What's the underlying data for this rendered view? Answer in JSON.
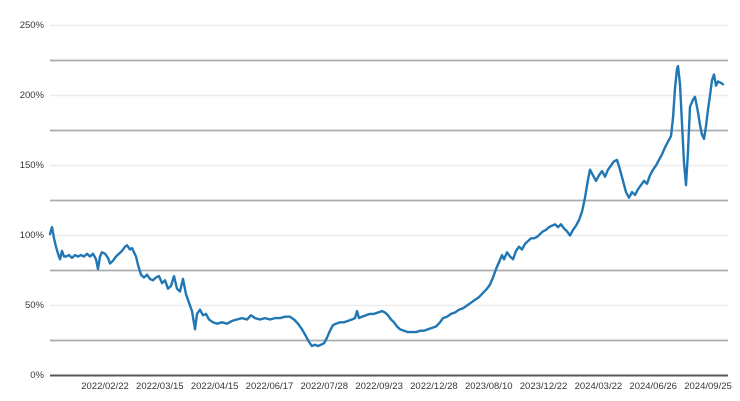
{
  "colors": {
    "background": "#ffffff",
    "line": "#2077b4",
    "major_gridline": "#ececec",
    "minor_gridline": "#a9adb2",
    "axis_line": "#54585d",
    "tick_label": "#35373a"
  },
  "chart_data": {
    "type": "line",
    "title": "",
    "legend": "none",
    "grid": "horizontal-only",
    "unit": "%",
    "ylim": [
      0,
      250
    ],
    "y_tick_labels": [
      "250%",
      "200%",
      "150%",
      "100%",
      "50%",
      "0%"
    ],
    "y_ticks_pct": [
      250,
      200,
      150,
      100,
      50,
      0
    ],
    "y_minor_gridlines_pct": [
      225,
      175,
      125,
      75,
      25
    ],
    "x_tick_labels": [
      "2022/02/22",
      "2022/03/15",
      "2022/04/15",
      "2022/06/17",
      "2022/07/28",
      "2022/09/23",
      "2022/12/28",
      "2023/08/10",
      "2023/12/22",
      "2024/03/22",
      "2024/06/26",
      "2024/09/25"
    ],
    "point_format": "[x_position_0to678_along_axis, percent_value]",
    "series": [
      {
        "points": [
          [
            0,
            101
          ],
          [
            2,
            106
          ],
          [
            4,
            98
          ],
          [
            6,
            92
          ],
          [
            8,
            87
          ],
          [
            10,
            83
          ],
          [
            12,
            89
          ],
          [
            14,
            85
          ],
          [
            16,
            85
          ],
          [
            19,
            86
          ],
          [
            22,
            84
          ],
          [
            25,
            86
          ],
          [
            28,
            85
          ],
          [
            31,
            86
          ],
          [
            34,
            85
          ],
          [
            37,
            87
          ],
          [
            40,
            85
          ],
          [
            43,
            87
          ],
          [
            46,
            83
          ],
          [
            48,
            76
          ],
          [
            50,
            85
          ],
          [
            52,
            88
          ],
          [
            55,
            87
          ],
          [
            58,
            84
          ],
          [
            60,
            80
          ],
          [
            63,
            82
          ],
          [
            66,
            85
          ],
          [
            69,
            87
          ],
          [
            72,
            89
          ],
          [
            75,
            92
          ],
          [
            77,
            93
          ],
          [
            80,
            90
          ],
          [
            82,
            91
          ],
          [
            84,
            88
          ],
          [
            86,
            85
          ],
          [
            88,
            79
          ],
          [
            91,
            72
          ],
          [
            94,
            70
          ],
          [
            97,
            72
          ],
          [
            100,
            69
          ],
          [
            103,
            68
          ],
          [
            106,
            70
          ],
          [
            109,
            71
          ],
          [
            112,
            66
          ],
          [
            115,
            68
          ],
          [
            118,
            62
          ],
          [
            121,
            64
          ],
          [
            124,
            71
          ],
          [
            127,
            62
          ],
          [
            130,
            60
          ],
          [
            133,
            69
          ],
          [
            136,
            58
          ],
          [
            139,
            52
          ],
          [
            142,
            46
          ],
          [
            145,
            33
          ],
          [
            147,
            44
          ],
          [
            150,
            47
          ],
          [
            153,
            43
          ],
          [
            156,
            44
          ],
          [
            159,
            40
          ],
          [
            163,
            38
          ],
          [
            167,
            37
          ],
          [
            172,
            38
          ],
          [
            177,
            37
          ],
          [
            182,
            39
          ],
          [
            187,
            40
          ],
          [
            192,
            41
          ],
          [
            197,
            40
          ],
          [
            201,
            43
          ],
          [
            205,
            41
          ],
          [
            210,
            40
          ],
          [
            215,
            41
          ],
          [
            220,
            40
          ],
          [
            225,
            41
          ],
          [
            230,
            41
          ],
          [
            235,
            42
          ],
          [
            240,
            42
          ],
          [
            244,
            40
          ],
          [
            248,
            37
          ],
          [
            252,
            33
          ],
          [
            256,
            28
          ],
          [
            259,
            24
          ],
          [
            262,
            21
          ],
          [
            265,
            22
          ],
          [
            268,
            21
          ],
          [
            271,
            22
          ],
          [
            274,
            23
          ],
          [
            277,
            27
          ],
          [
            280,
            32
          ],
          [
            283,
            36
          ],
          [
            286,
            37
          ],
          [
            290,
            38
          ],
          [
            294,
            38
          ],
          [
            298,
            39
          ],
          [
            302,
            40
          ],
          [
            305,
            41
          ],
          [
            307,
            46
          ],
          [
            309,
            41
          ],
          [
            312,
            42
          ],
          [
            316,
            43
          ],
          [
            320,
            44
          ],
          [
            324,
            44
          ],
          [
            328,
            45
          ],
          [
            332,
            46
          ],
          [
            335,
            45
          ],
          [
            338,
            43
          ],
          [
            341,
            40
          ],
          [
            344,
            38
          ],
          [
            347,
            35
          ],
          [
            350,
            33
          ],
          [
            354,
            32
          ],
          [
            358,
            31
          ],
          [
            362,
            31
          ],
          [
            366,
            31
          ],
          [
            370,
            32
          ],
          [
            374,
            32
          ],
          [
            378,
            33
          ],
          [
            382,
            34
          ],
          [
            386,
            35
          ],
          [
            390,
            38
          ],
          [
            393,
            41
          ],
          [
            397,
            42
          ],
          [
            401,
            44
          ],
          [
            405,
            45
          ],
          [
            409,
            47
          ],
          [
            413,
            48
          ],
          [
            417,
            50
          ],
          [
            421,
            52
          ],
          [
            425,
            54
          ],
          [
            429,
            56
          ],
          [
            433,
            59
          ],
          [
            437,
            62
          ],
          [
            440,
            65
          ],
          [
            443,
            70
          ],
          [
            446,
            76
          ],
          [
            449,
            81
          ],
          [
            452,
            86
          ],
          [
            454,
            83
          ],
          [
            457,
            88
          ],
          [
            460,
            85
          ],
          [
            463,
            83
          ],
          [
            466,
            89
          ],
          [
            469,
            92
          ],
          [
            472,
            90
          ],
          [
            475,
            94
          ],
          [
            478,
            96
          ],
          [
            481,
            98
          ],
          [
            484,
            98
          ],
          [
            487,
            99
          ],
          [
            490,
            101
          ],
          [
            493,
            103
          ],
          [
            496,
            104
          ],
          [
            499,
            106
          ],
          [
            502,
            107
          ],
          [
            505,
            108
          ],
          [
            508,
            106
          ],
          [
            511,
            108
          ],
          [
            514,
            105
          ],
          [
            517,
            103
          ],
          [
            520,
            100
          ],
          [
            523,
            104
          ],
          [
            526,
            107
          ],
          [
            529,
            111
          ],
          [
            532,
            117
          ],
          [
            535,
            127
          ],
          [
            538,
            140
          ],
          [
            540,
            147
          ],
          [
            543,
            143
          ],
          [
            546,
            139
          ],
          [
            549,
            143
          ],
          [
            552,
            146
          ],
          [
            555,
            142
          ],
          [
            558,
            147
          ],
          [
            561,
            150
          ],
          [
            564,
            153
          ],
          [
            567,
            154
          ],
          [
            570,
            147
          ],
          [
            573,
            139
          ],
          [
            576,
            131
          ],
          [
            579,
            127
          ],
          [
            582,
            131
          ],
          [
            585,
            129
          ],
          [
            588,
            133
          ],
          [
            591,
            136
          ],
          [
            594,
            139
          ],
          [
            597,
            137
          ],
          [
            600,
            143
          ],
          [
            603,
            147
          ],
          [
            606,
            150
          ],
          [
            609,
            154
          ],
          [
            612,
            158
          ],
          [
            615,
            163
          ],
          [
            618,
            167
          ],
          [
            621,
            171
          ],
          [
            623,
            184
          ],
          [
            625,
            205
          ],
          [
            627,
            219
          ],
          [
            628,
            221
          ],
          [
            630,
            208
          ],
          [
            632,
            180
          ],
          [
            634,
            152
          ],
          [
            636,
            136
          ],
          [
            638,
            160
          ],
          [
            640,
            192
          ],
          [
            643,
            197
          ],
          [
            645,
            199
          ],
          [
            648,
            188
          ],
          [
            650,
            179
          ],
          [
            652,
            172
          ],
          [
            654,
            169
          ],
          [
            656,
            178
          ],
          [
            658,
            190
          ],
          [
            660,
            200
          ],
          [
            662,
            211
          ],
          [
            664,
            215
          ],
          [
            666,
            207
          ],
          [
            668,
            210
          ],
          [
            671,
            209
          ],
          [
            673,
            208
          ]
        ]
      }
    ]
  }
}
